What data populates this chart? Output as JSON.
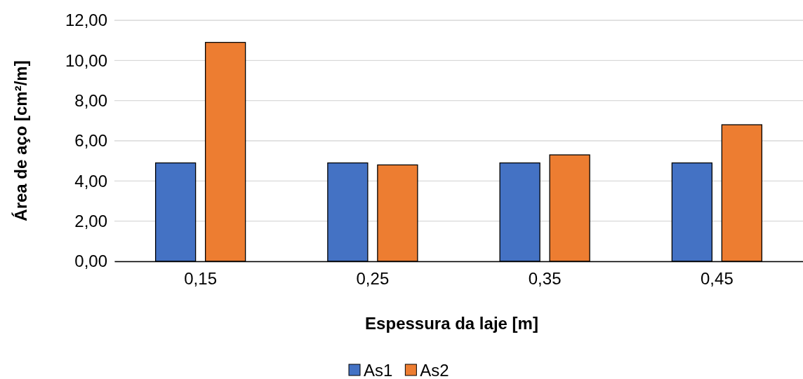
{
  "chart_data": {
    "type": "bar",
    "xlabel": "Espessura da laje [m]",
    "ylabel": "Área de aço [cm²/m]",
    "categories": [
      "0,15",
      "0,25",
      "0,35",
      "0,45"
    ],
    "series": [
      {
        "name": "As1",
        "color": "#4472c4",
        "values": [
          4.9,
          4.9,
          4.9,
          4.9
        ]
      },
      {
        "name": "As2",
        "color": "#ed7d31",
        "values": [
          10.9,
          4.8,
          5.3,
          6.8
        ]
      }
    ],
    "ylim": [
      0,
      12
    ],
    "yticks": [
      {
        "value": 0,
        "label": "0,00"
      },
      {
        "value": 2,
        "label": "2,00"
      },
      {
        "value": 4,
        "label": "4,00"
      },
      {
        "value": 6,
        "label": "6,00"
      },
      {
        "value": 8,
        "label": "8,00"
      },
      {
        "value": 10,
        "label": "10,00"
      },
      {
        "value": 12,
        "label": "12,00"
      }
    ],
    "grid": "y",
    "legend": "bottom"
  }
}
